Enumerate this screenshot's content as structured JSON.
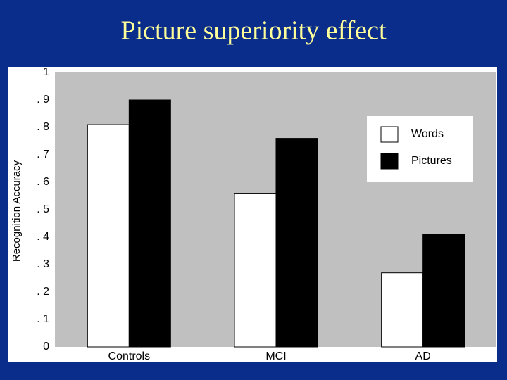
{
  "chart_data": {
    "type": "bar",
    "title": "Picture superiority effect",
    "y_label": "Recognition Accuracy",
    "categories": [
      "Controls",
      "MCI",
      "AD"
    ],
    "series": [
      {
        "name": "Words",
        "color": "#ffffff",
        "values": [
          0.81,
          0.56,
          0.27
        ]
      },
      {
        "name": "Pictures",
        "color": "#000000",
        "values": [
          0.9,
          0.76,
          0.41
        ]
      }
    ],
    "ylim": [
      0,
      1
    ],
    "yticks": [
      0,
      {
        "value": 0.1,
        "label": ". 1"
      },
      {
        "value": 0.2,
        "label": ". 2"
      },
      {
        "value": 0.3,
        "label": ". 3"
      },
      {
        "value": 0.4,
        "label": ". 4"
      },
      {
        "value": 0.5,
        "label": ". 5"
      },
      {
        "value": 0.6,
        "label": ". 6"
      },
      {
        "value": 0.7,
        "label": ". 7"
      },
      {
        "value": 0.8,
        "label": ". 8"
      },
      {
        "value": 0.9,
        "label": ". 9"
      },
      1
    ],
    "grid": false,
    "legend": "upper right"
  }
}
